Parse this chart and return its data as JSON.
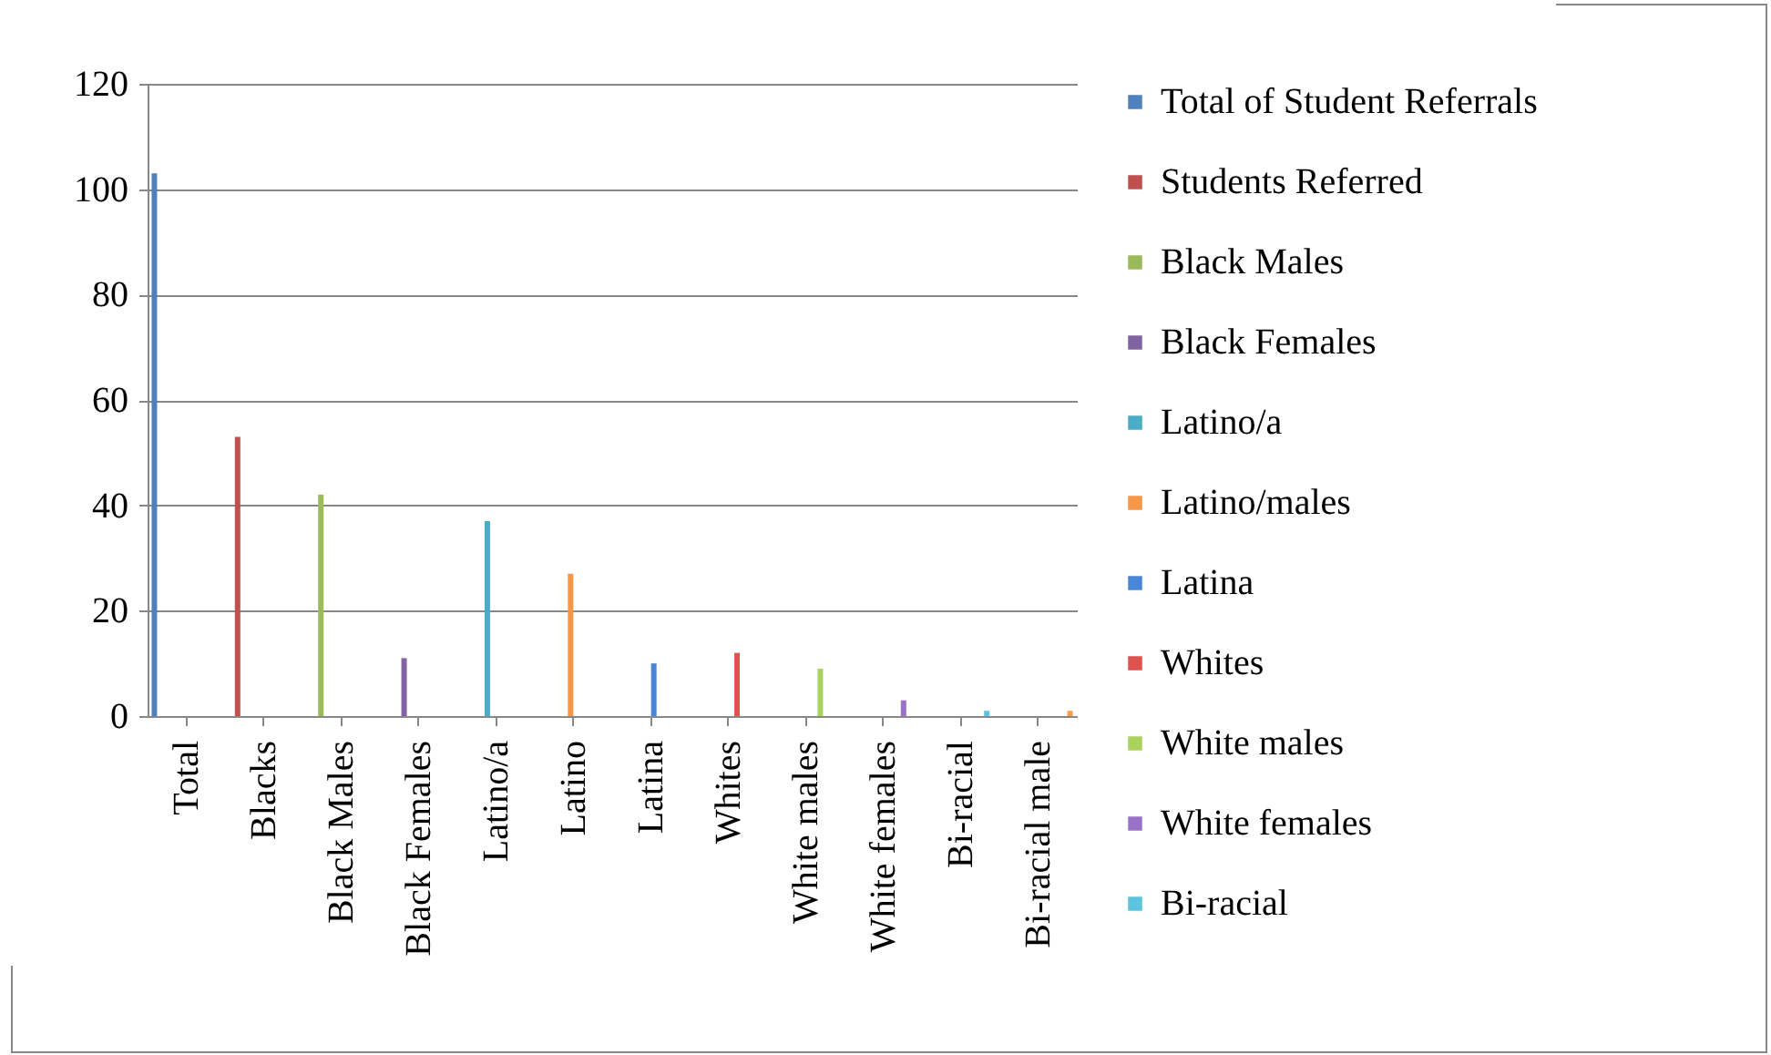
{
  "chart_data": {
    "type": "bar",
    "categories": [
      "Total",
      "Blacks",
      "Black Males",
      "Black Females",
      "Latino/a",
      "Latino",
      "Latina",
      "Whites",
      "White males",
      "White females",
      "Bi-racial",
      "Bi-racial male"
    ],
    "series": [
      {
        "name": "Total of Student Referrals",
        "color": "#4f81bd",
        "values": [
          103,
          null,
          null,
          null,
          null,
          null,
          null,
          null,
          null,
          null,
          null,
          null
        ]
      },
      {
        "name": "Students Referred",
        "color": "#c0504d",
        "values": [
          null,
          53,
          null,
          null,
          null,
          null,
          null,
          null,
          null,
          null,
          null,
          null
        ]
      },
      {
        "name": "Black Males",
        "color": "#9bbb59",
        "values": [
          null,
          null,
          42,
          null,
          null,
          null,
          null,
          null,
          null,
          null,
          null,
          null
        ]
      },
      {
        "name": "Black Females",
        "color": "#8064a2",
        "values": [
          null,
          null,
          null,
          11,
          null,
          null,
          null,
          null,
          null,
          null,
          null,
          null
        ]
      },
      {
        "name": "Latino/a",
        "color": "#4bacc6",
        "values": [
          null,
          null,
          null,
          null,
          37,
          null,
          null,
          null,
          null,
          null,
          null,
          null
        ]
      },
      {
        "name": "Latino/males",
        "color": "#f79646",
        "values": [
          null,
          null,
          null,
          null,
          null,
          27,
          null,
          null,
          null,
          null,
          null,
          null
        ]
      },
      {
        "name": "Latina",
        "color": "#4a86d8",
        "values": [
          null,
          null,
          null,
          null,
          null,
          null,
          10,
          null,
          null,
          null,
          null,
          null
        ]
      },
      {
        "name": "Whites",
        "color": "#e0524f",
        "values": [
          null,
          null,
          null,
          null,
          null,
          null,
          null,
          12,
          null,
          null,
          null,
          null
        ]
      },
      {
        "name": "White males",
        "color": "#a9d35c",
        "values": [
          null,
          null,
          null,
          null,
          null,
          null,
          null,
          null,
          9,
          null,
          null,
          null
        ]
      },
      {
        "name": "White females",
        "color": "#9a72c8",
        "values": [
          null,
          null,
          null,
          null,
          null,
          null,
          null,
          null,
          null,
          3,
          null,
          null
        ]
      },
      {
        "name": "Bi-racial",
        "color": "#5bc5e0",
        "values": [
          null,
          null,
          null,
          null,
          null,
          null,
          null,
          null,
          null,
          null,
          1,
          null
        ]
      },
      {
        "color": "#f7a04b",
        "values": [
          null,
          null,
          null,
          null,
          null,
          null,
          null,
          null,
          null,
          null,
          null,
          1
        ]
      }
    ],
    "ylim": [
      0,
      120
    ],
    "yticks": [
      0,
      20,
      40,
      60,
      80,
      100,
      120
    ],
    "grid": "y",
    "legend": "right"
  }
}
